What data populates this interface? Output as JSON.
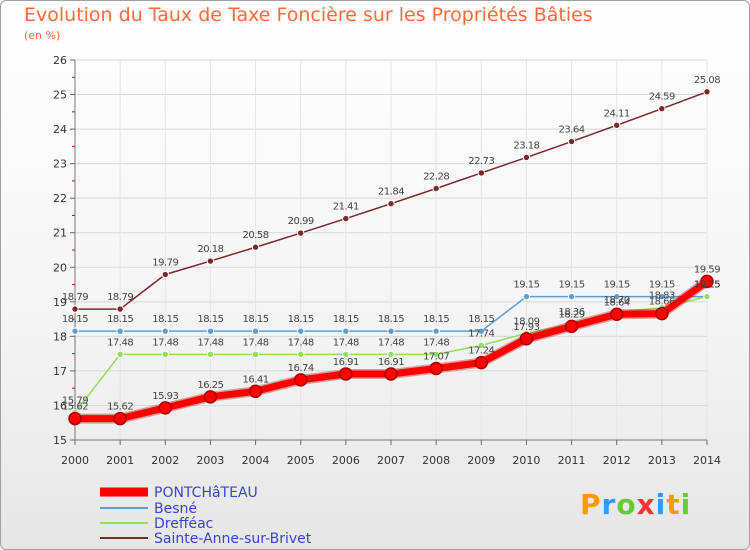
{
  "chart_data": {
    "type": "line",
    "title": "Evolution du Taux de Taxe Foncière sur les Propriétés Bâties",
    "ylabel": "(en %)",
    "xlabel": "",
    "ylim": [
      15,
      26
    ],
    "yticks": [
      15,
      16,
      17,
      18,
      19,
      20,
      21,
      22,
      23,
      24,
      25,
      26
    ],
    "x": [
      "2000",
      "2001",
      "2002",
      "2003",
      "2004",
      "2005",
      "2006",
      "2007",
      "2008",
      "2009",
      "2010",
      "2011",
      "2012",
      "2013",
      "2014"
    ],
    "series": [
      {
        "name": "PONTCHâTEAU",
        "color": "#ff0000",
        "values": [
          15.62,
          15.62,
          15.93,
          16.25,
          16.41,
          16.74,
          16.91,
          16.91,
          17.07,
          17.24,
          17.93,
          18.29,
          18.64,
          18.66,
          19.59
        ],
        "labels": [
          "15.62",
          "15.62",
          "15.93",
          "16.25",
          "16.41",
          "16.74",
          "16.91",
          "16.91",
          "17.07",
          "17.24",
          "17.93",
          "18.29",
          "18.64",
          "18.66",
          "19.59"
        ]
      },
      {
        "name": "Besné",
        "color": "#5a9fd4",
        "values": [
          18.15,
          18.15,
          18.15,
          18.15,
          18.15,
          18.15,
          18.15,
          18.15,
          18.15,
          18.15,
          19.15,
          19.15,
          19.15,
          19.15,
          19.15
        ],
        "labels": [
          "18.15",
          "18.15",
          "18.15",
          "18.15",
          "18.15",
          "18.15",
          "18.15",
          "18.15",
          "18.15",
          "18.15",
          "19.15",
          "19.15",
          "19.15",
          "19.15",
          "19.15"
        ]
      },
      {
        "name": "Drefféac",
        "color": "#90e060",
        "values": [
          15.79,
          17.48,
          17.48,
          17.48,
          17.48,
          17.48,
          17.48,
          17.48,
          17.48,
          17.74,
          18.09,
          18.36,
          18.7,
          18.83,
          19.15
        ],
        "labels": [
          "15.79",
          "17.48",
          "17.48",
          "17.48",
          "17.48",
          "17.48",
          "17.48",
          "17.48",
          "17.48",
          "17.74",
          "18.09",
          "18.36",
          "18.70",
          "18.83",
          "19.15"
        ]
      },
      {
        "name": "Sainte-Anne-sur-Brivet",
        "color": "#7a2828",
        "values": [
          18.79,
          18.79,
          19.79,
          20.18,
          20.58,
          20.99,
          21.41,
          21.84,
          22.28,
          22.73,
          23.18,
          23.64,
          24.11,
          24.59,
          25.08
        ],
        "labels": [
          "18.79",
          "18.79",
          "19.79",
          "20.18",
          "20.58",
          "20.99",
          "21.41",
          "21.84",
          "22.28",
          "22.73",
          "23.18",
          "23.64",
          "24.11",
          "24.59",
          "25.08"
        ]
      }
    ],
    "legend_position": "bottom-left"
  },
  "logo": {
    "letters": [
      "P",
      "r",
      "o",
      "x",
      "i",
      "t",
      "i"
    ],
    "colors": [
      "#ff9900",
      "#3399ff",
      "#66cc33",
      "#ff3333",
      "#3399ff",
      "#ff9900",
      "#66cc33"
    ]
  }
}
